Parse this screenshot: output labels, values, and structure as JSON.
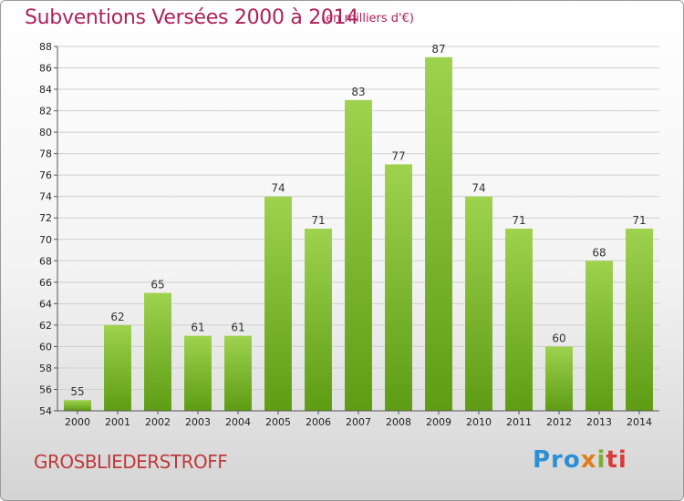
{
  "header": {
    "title": "Subventions Versées 2000 à 2014",
    "unit": "(en milliers d'€)"
  },
  "footer": {
    "commune": "GROSBLIEDERSTROFF",
    "logo": {
      "p1": "Pro",
      "p2": "x",
      "p3": "i",
      "p4": "ti"
    }
  },
  "colors": {
    "bar_top": "#9ed24f",
    "bar_bottom": "#5e9c14",
    "title": "#b0215a",
    "commune": "#c0393b"
  },
  "chart_data": {
    "type": "bar",
    "title": "Subventions Versées 2000 à 2014",
    "xlabel": "",
    "ylabel": "",
    "ylim": [
      54,
      88
    ],
    "yticks": [
      54,
      56,
      58,
      60,
      62,
      64,
      66,
      68,
      70,
      72,
      74,
      76,
      78,
      80,
      82,
      84,
      86,
      88
    ],
    "grid": true,
    "categories": [
      "2000",
      "2001",
      "2002",
      "2003",
      "2004",
      "2005",
      "2006",
      "2007",
      "2008",
      "2009",
      "2010",
      "2011",
      "2012",
      "2013",
      "2014"
    ],
    "values": [
      55,
      62,
      65,
      61,
      61,
      74,
      71,
      83,
      77,
      87,
      74,
      71,
      60,
      68,
      71
    ]
  }
}
